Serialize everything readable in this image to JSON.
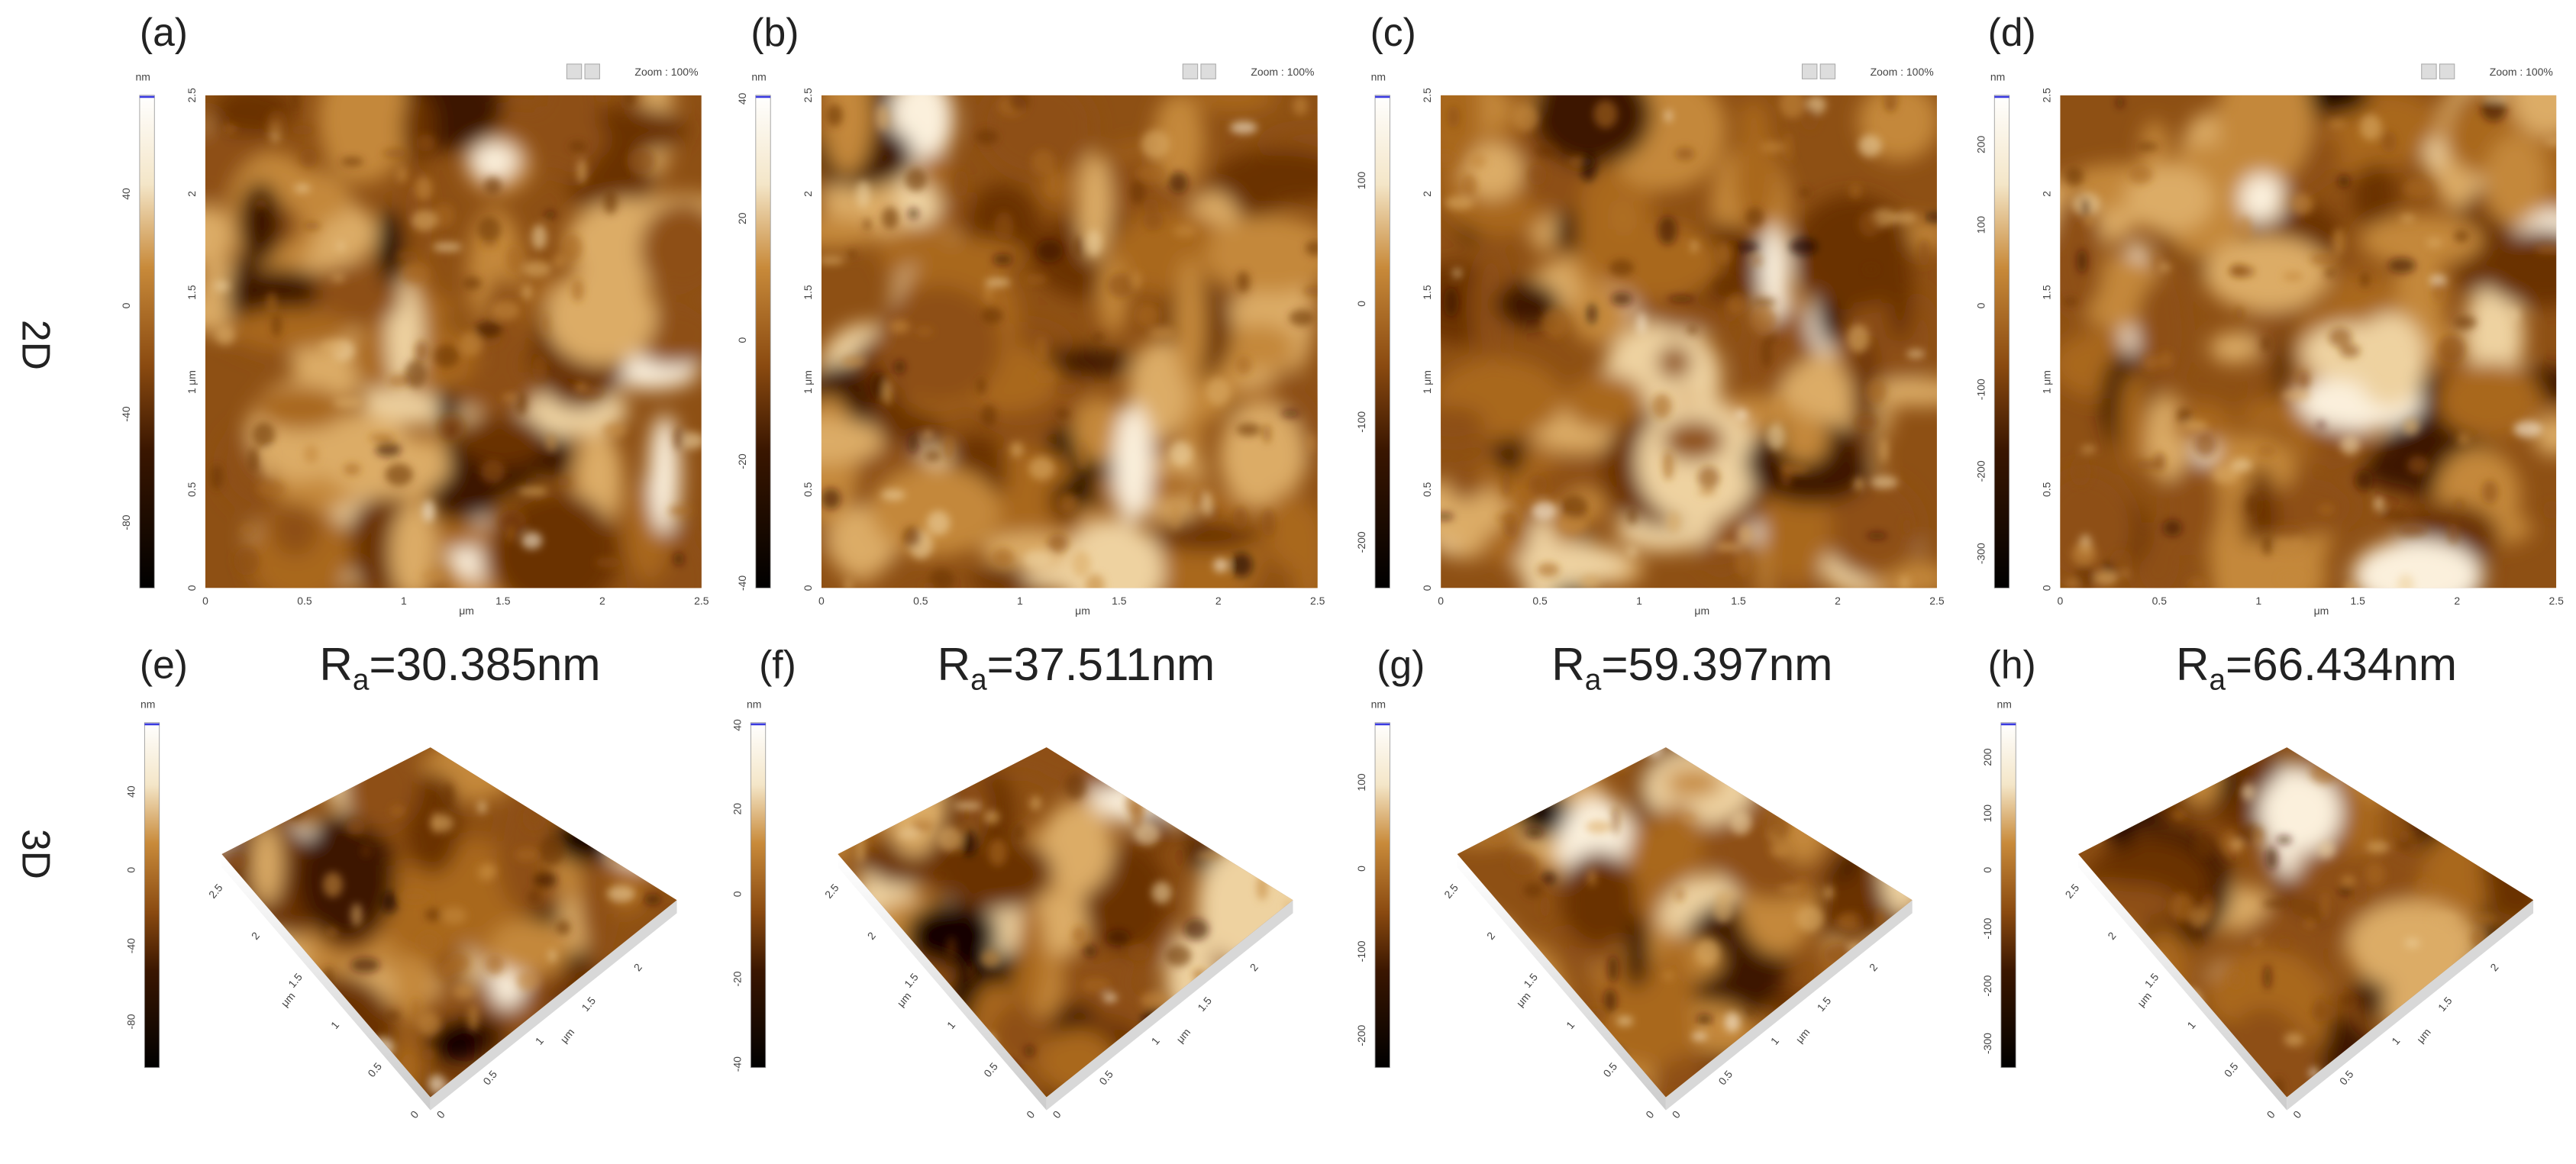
{
  "row_labels": [
    "2D",
    "3D"
  ],
  "panels_2d": [
    {
      "label": "(a)",
      "zoom": "Zoom : 100%",
      "colorbar": {
        "unit": "nm",
        "ticks": [
          "40",
          "0",
          "-40",
          "-80"
        ]
      },
      "y_axis": {
        "unit": "μm",
        "ticks": [
          "0",
          "0.5",
          "1",
          "1.5",
          "2",
          "2.5"
        ]
      },
      "x_axis": {
        "unit": "μm",
        "ticks": [
          "0",
          "0.5",
          "1",
          "1.5",
          "2",
          "2.5"
        ]
      }
    },
    {
      "label": "(b)",
      "zoom": "Zoom : 100%",
      "colorbar": {
        "unit": "nm",
        "ticks": [
          "40",
          "20",
          "0",
          "-20",
          "-40"
        ]
      },
      "y_axis": {
        "unit": "μm",
        "ticks": [
          "0",
          "0.5",
          "1",
          "1.5",
          "2",
          "2.5"
        ]
      },
      "x_axis": {
        "unit": "μm",
        "ticks": [
          "0",
          "0.5",
          "1",
          "1.5",
          "2",
          "2.5"
        ]
      }
    },
    {
      "label": "(c)",
      "zoom": "Zoom : 100%",
      "colorbar": {
        "unit": "nm",
        "ticks": [
          "100",
          "0",
          "-100",
          "-200"
        ]
      },
      "y_axis": {
        "unit": "μm",
        "ticks": [
          "0",
          "0.5",
          "1",
          "1.5",
          "2",
          "2.5"
        ]
      },
      "x_axis": {
        "unit": "μm",
        "ticks": [
          "0",
          "0.5",
          "1",
          "1.5",
          "2",
          "2.5"
        ]
      }
    },
    {
      "label": "(d)",
      "zoom": "Zoom : 100%",
      "colorbar": {
        "unit": "nm",
        "ticks": [
          "200",
          "100",
          "0",
          "-100",
          "-200",
          "-300"
        ]
      },
      "y_axis": {
        "unit": "μm",
        "ticks": [
          "0",
          "0.5",
          "1",
          "1.5",
          "2",
          "2.5"
        ]
      },
      "x_axis": {
        "unit": "μm",
        "ticks": [
          "0",
          "0.5",
          "1",
          "1.5",
          "2",
          "2.5"
        ]
      }
    }
  ],
  "panels_3d": [
    {
      "label": "(e)",
      "roughness": {
        "symbol": "R",
        "subscript": "a",
        "value": "=30.385nm"
      },
      "colorbar": {
        "unit": "nm",
        "ticks": [
          "40",
          "0",
          "-40",
          "-80"
        ]
      },
      "left_axis": {
        "unit": "μm",
        "ticks": [
          "2.5",
          "2",
          "1.5",
          "1",
          "0.5",
          "0"
        ]
      },
      "right_axis": {
        "unit": "μm",
        "ticks": [
          "0",
          "0.5",
          "1",
          "1.5",
          "2"
        ]
      }
    },
    {
      "label": "(f)",
      "roughness": {
        "symbol": "R",
        "subscript": "a",
        "value": "=37.511nm"
      },
      "colorbar": {
        "unit": "nm",
        "ticks": [
          "40",
          "20",
          "0",
          "-20",
          "-40"
        ]
      },
      "left_axis": {
        "unit": "μm",
        "ticks": [
          "2.5",
          "2",
          "1.5",
          "1",
          "0.5",
          "0"
        ]
      },
      "right_axis": {
        "unit": "μm",
        "ticks": [
          "0",
          "0.5",
          "1",
          "1.5",
          "2"
        ]
      }
    },
    {
      "label": "(g)",
      "roughness": {
        "symbol": "R",
        "subscript": "a",
        "value": "=59.397nm"
      },
      "colorbar": {
        "unit": "nm",
        "ticks": [
          "100",
          "0",
          "-100",
          "-200"
        ]
      },
      "left_axis": {
        "unit": "μm",
        "ticks": [
          "2.5",
          "2",
          "1.5",
          "1",
          "0.5",
          "0"
        ]
      },
      "right_axis": {
        "unit": "μm",
        "ticks": [
          "0",
          "0.5",
          "1",
          "1.5",
          "2"
        ]
      }
    },
    {
      "label": "(h)",
      "roughness": {
        "symbol": "R",
        "subscript": "a",
        "value": "=66.434nm"
      },
      "colorbar": {
        "unit": "nm",
        "ticks": [
          "200",
          "100",
          "0",
          "-100",
          "-200",
          "-300"
        ]
      },
      "left_axis": {
        "unit": "μm",
        "ticks": [
          "2.5",
          "2",
          "1.5",
          "1",
          "0.5",
          "0"
        ]
      },
      "right_axis": {
        "unit": "μm",
        "ticks": [
          "0",
          "0.5",
          "1",
          "1.5",
          "2"
        ]
      }
    }
  ]
}
